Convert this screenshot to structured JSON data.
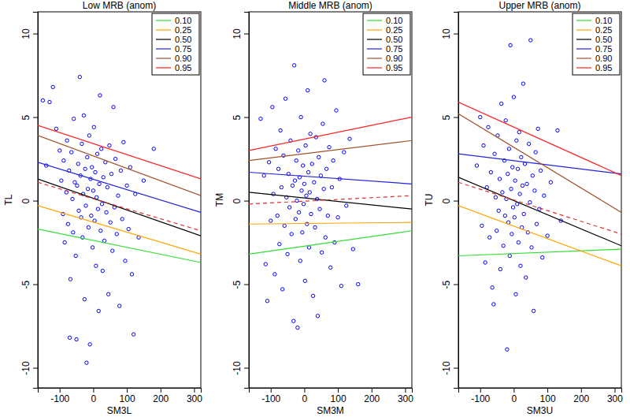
{
  "chart_data": [
    {
      "type": "scatter",
      "title": "Low MRB (anom)",
      "x_label": "SM3L",
      "y_label": "TL",
      "xlim": [
        -165,
        320
      ],
      "ylim": [
        -11.2,
        11.3
      ],
      "xticks": [
        -100,
        0,
        100,
        200,
        300
      ],
      "yticks": [
        -10,
        -5,
        0,
        5,
        10
      ],
      "legend": "top-right",
      "series": [
        {
          "type": "scatter",
          "marker": "circle",
          "color": "#0000ff",
          "x": [
            -150,
            -120,
            -130,
            -140,
            -110,
            -100,
            -95,
            -90,
            -88,
            -85,
            -80,
            -78,
            -75,
            -72,
            -70,
            -68,
            -65,
            -62,
            -60,
            -58,
            -55,
            -52,
            -50,
            -48,
            -45,
            -43,
            -40,
            -38,
            -36,
            -34,
            -32,
            -30,
            -28,
            -26,
            -24,
            -22,
            -20,
            -18,
            -16,
            -14,
            -12,
            -10,
            -8,
            -6,
            -4,
            -2,
            0,
            2,
            4,
            6,
            8,
            10,
            12,
            14,
            16,
            18,
            20,
            22,
            24,
            26,
            28,
            30,
            33,
            36,
            39,
            42,
            45,
            48,
            51,
            54,
            57,
            60,
            63,
            66,
            70,
            74,
            78,
            82,
            86,
            90,
            95,
            100,
            105,
            110,
            115,
            120,
            125,
            135,
            150,
            180
          ],
          "values": [
            6.0,
            6.8,
            5.9,
            2.1,
            4.3,
            3.0,
            1.2,
            -0.8,
            2.4,
            -2.5,
            0.5,
            3.6,
            -1.4,
            1.8,
            -8.2,
            -4.7,
            2.9,
            0.1,
            -1.9,
            4.9,
            1.1,
            -3.3,
            -8.3,
            0.9,
            2.2,
            -0.6,
            7.4,
            1.5,
            -1.0,
            3.4,
            -2.2,
            0.4,
            5.1,
            -5.9,
            1.9,
            -0.3,
            -9.7,
            2.6,
            0.7,
            -1.6,
            3.9,
            -8.6,
            1.3,
            -0.9,
            2.0,
            -2.8,
            0.6,
            4.4,
            -1.2,
            1.7,
            -3.9,
            0.2,
            2.8,
            -0.5,
            -6.6,
            1.0,
            6.3,
            -1.8,
            3.1,
            -0.2,
            -4.2,
            1.4,
            -2.4,
            2.3,
            -0.7,
            0.8,
            -5.6,
            3.3,
            -1.3,
            1.6,
            -3.0,
            5.6,
            -0.4,
            2.5,
            -2.0,
            0.3,
            -6.3,
            1.8,
            -1.1,
            3.5,
            -3.6,
            0.9,
            -1.7,
            2.0,
            -4.4,
            -8.0,
            0.4,
            -2.2,
            1.2,
            3.1
          ]
        },
        {
          "type": "line",
          "name": "0.10",
          "color": "#33dd33",
          "line_style": "solid",
          "x": [
            -165,
            320
          ],
          "values": [
            -1.7,
            -3.7
          ]
        },
        {
          "type": "line",
          "name": "0.25",
          "color": "#ffa500",
          "line_style": "solid",
          "x": [
            -165,
            320
          ],
          "values": [
            -0.3,
            -3.2
          ]
        },
        {
          "type": "line",
          "name": "0.50",
          "color": "#000000",
          "line_style": "solid",
          "x": [
            -165,
            320
          ],
          "values": [
            1.3,
            -2.1
          ]
        },
        {
          "type": "line",
          "name": "0.75",
          "color": "#2222dd",
          "line_style": "solid",
          "x": [
            -165,
            320
          ],
          "values": [
            2.3,
            -0.7
          ]
        },
        {
          "type": "line",
          "name": "0.90",
          "color": "#a0522d",
          "line_style": "solid",
          "x": [
            -165,
            320
          ],
          "values": [
            3.9,
            0.3
          ]
        },
        {
          "type": "line",
          "name": "0.95",
          "color": "#ff2222",
          "line_style": "solid",
          "x": [
            -165,
            320
          ],
          "values": [
            4.5,
            1.3
          ]
        },
        {
          "type": "line",
          "color": "#dd3333",
          "line_style": "dashed",
          "x": [
            -165,
            320
          ],
          "values": [
            1.1,
            -1.8
          ]
        }
      ]
    },
    {
      "type": "scatter",
      "title": "Middle MRB (anom)",
      "x_label": "SM3M",
      "y_label": "TM",
      "xlim": [
        -165,
        320
      ],
      "ylim": [
        -11.2,
        11.3
      ],
      "xticks": [
        -100,
        0,
        100,
        200,
        300
      ],
      "yticks": [
        -10,
        -5,
        0,
        5,
        10
      ],
      "legend": "top-right",
      "series": [
        {
          "type": "scatter",
          "marker": "circle",
          "color": "#0000ff",
          "x": [
            -130,
            -120,
            -115,
            -110,
            -105,
            -100,
            -95,
            -92,
            -88,
            -85,
            -80,
            -77,
            -74,
            -71,
            -68,
            -65,
            -62,
            -59,
            -56,
            -53,
            -50,
            -47,
            -44,
            -41,
            -38,
            -35,
            -32,
            -30,
            -28,
            -26,
            -24,
            -22,
            -20,
            -18,
            -16,
            -14,
            -12,
            -10,
            -8,
            -6,
            -4,
            -2,
            0,
            2,
            4,
            6,
            8,
            10,
            12,
            14,
            16,
            18,
            20,
            23,
            26,
            29,
            32,
            35,
            38,
            40,
            43,
            46,
            49,
            52,
            55,
            58,
            60,
            63,
            66,
            70,
            74,
            78,
            82,
            86,
            90,
            95,
            100,
            105,
            110,
            118,
            125,
            135,
            145,
            160
          ],
          "values": [
            4.9,
            1.5,
            -3.8,
            -6.0,
            2.3,
            -1.2,
            5.6,
            0.4,
            -4.4,
            3.1,
            -0.9,
            1.9,
            -2.6,
            4.2,
            0.8,
            -5.3,
            2.7,
            -1.5,
            6.1,
            0.2,
            -3.2,
            1.6,
            -0.4,
            3.6,
            -2.0,
            0.9,
            -7.2,
            8.1,
            1.2,
            -1.1,
            2.4,
            0.0,
            -7.6,
            3.0,
            -0.7,
            1.4,
            -3.6,
            5.0,
            0.6,
            -1.9,
            2.1,
            -0.2,
            1.0,
            -4.8,
            3.3,
            0.3,
            -1.4,
            6.6,
            1.7,
            -2.8,
            0.5,
            4.0,
            -0.8,
            2.2,
            -5.7,
            1.1,
            -1.6,
            3.8,
            0.1,
            -6.9,
            2.6,
            -0.5,
            1.5,
            -3.1,
            4.6,
            0.7,
            7.2,
            -2.2,
            1.9,
            -0.9,
            3.2,
            -4.0,
            0.8,
            2.4,
            -2.5,
            5.4,
            -1.0,
            1.3,
            -5.1,
            2.9,
            -0.3,
            3.7,
            -2.9,
            -5.0
          ]
        },
        {
          "type": "line",
          "name": "0.10",
          "color": "#33dd33",
          "line_style": "solid",
          "x": [
            -165,
            320
          ],
          "values": [
            -3.2,
            -1.8
          ]
        },
        {
          "type": "line",
          "name": "0.25",
          "color": "#ffa500",
          "line_style": "solid",
          "x": [
            -165,
            320
          ],
          "values": [
            -1.4,
            -1.3
          ]
        },
        {
          "type": "line",
          "name": "0.50",
          "color": "#000000",
          "line_style": "solid",
          "x": [
            -165,
            320
          ],
          "values": [
            0.5,
            -0.5
          ]
        },
        {
          "type": "line",
          "name": "0.75",
          "color": "#2222dd",
          "line_style": "solid",
          "x": [
            -165,
            320
          ],
          "values": [
            1.7,
            1.0
          ]
        },
        {
          "type": "line",
          "name": "0.90",
          "color": "#a0522d",
          "line_style": "solid",
          "x": [
            -165,
            320
          ],
          "values": [
            2.4,
            3.6
          ]
        },
        {
          "type": "line",
          "name": "0.95",
          "color": "#ff2222",
          "line_style": "solid",
          "x": [
            -165,
            320
          ],
          "values": [
            3.0,
            5.0
          ]
        },
        {
          "type": "line",
          "color": "#dd3333",
          "line_style": "dashed",
          "x": [
            -165,
            320
          ],
          "values": [
            -0.2,
            0.3
          ]
        }
      ]
    },
    {
      "type": "scatter",
      "title": "Upper MRB (anom)",
      "x_label": "SM3U",
      "y_label": "TU",
      "xlim": [
        -165,
        320
      ],
      "ylim": [
        -11.2,
        11.3
      ],
      "xticks": [
        -100,
        0,
        100,
        200,
        300
      ],
      "yticks": [
        -10,
        -5,
        0,
        5,
        10
      ],
      "legend": "top-right",
      "series": [
        {
          "type": "scatter",
          "marker": "circle",
          "color": "#0000ff",
          "x": [
            -110,
            -100,
            -95,
            -90,
            -85,
            -80,
            -76,
            -72,
            -68,
            -64,
            -60,
            -57,
            -54,
            -51,
            -48,
            -45,
            -42,
            -40,
            -37,
            -34,
            -31,
            -28,
            -26,
            -24,
            -22,
            -20,
            -18,
            -16,
            -14,
            -12,
            -10,
            -8,
            -6,
            -4,
            -2,
            0,
            2,
            4,
            6,
            8,
            10,
            12,
            14,
            16,
            18,
            20,
            22,
            24,
            26,
            28,
            30,
            33,
            36,
            39,
            42,
            45,
            48,
            50,
            53,
            56,
            59,
            62,
            65,
            68,
            72,
            76,
            80,
            85,
            90,
            100,
            110,
            130,
            140
          ],
          "values": [
            2.1,
            5.0,
            -1.5,
            3.3,
            -3.7,
            0.8,
            4.4,
            -2.2,
            1.7,
            -5.2,
            -6.2,
            2.8,
            0.2,
            -1.8,
            3.9,
            -0.6,
            1.3,
            -4.1,
            5.8,
            0.5,
            -2.7,
            2.4,
            -0.9,
            4.8,
            0.1,
            -8.9,
            1.6,
            -1.3,
            3.1,
            -3.3,
            9.3,
            0.7,
            -2.0,
            2.0,
            -0.4,
            6.2,
            -1.0,
            1.2,
            -5.6,
            3.6,
            -0.2,
            1.9,
            -2.5,
            4.1,
            0.4,
            -3.9,
            2.6,
            -1.6,
            0.9,
            7.0,
            -0.8,
            2.2,
            -4.6,
            1.0,
            -1.9,
            3.4,
            -0.1,
            9.6,
            -2.8,
            1.5,
            -6.6,
            0.6,
            2.9,
            -1.4,
            4.3,
            -0.5,
            1.8,
            -3.4,
            0.3,
            -2.1,
            1.1,
            4.2,
            -1.2
          ]
        },
        {
          "type": "line",
          "name": "0.10",
          "color": "#33dd33",
          "line_style": "solid",
          "x": [
            -165,
            320
          ],
          "values": [
            -3.3,
            -2.9
          ]
        },
        {
          "type": "line",
          "name": "0.25",
          "color": "#ffa500",
          "line_style": "solid",
          "x": [
            -165,
            320
          ],
          "values": [
            -0.3,
            -3.9
          ]
        },
        {
          "type": "line",
          "name": "0.50",
          "color": "#000000",
          "line_style": "solid",
          "x": [
            -165,
            320
          ],
          "values": [
            1.4,
            -2.7
          ]
        },
        {
          "type": "line",
          "name": "0.75",
          "color": "#2222dd",
          "line_style": "solid",
          "x": [
            -165,
            320
          ],
          "values": [
            2.8,
            1.6
          ]
        },
        {
          "type": "line",
          "name": "0.90",
          "color": "#a0522d",
          "line_style": "solid",
          "x": [
            -165,
            320
          ],
          "values": [
            5.2,
            -0.7
          ]
        },
        {
          "type": "line",
          "name": "0.95",
          "color": "#ff2222",
          "line_style": "solid",
          "x": [
            -165,
            320
          ],
          "values": [
            5.9,
            1.5
          ]
        },
        {
          "type": "line",
          "color": "#dd3333",
          "line_style": "dashed",
          "x": [
            -165,
            320
          ],
          "values": [
            1.1,
            -2.0
          ]
        }
      ]
    }
  ]
}
